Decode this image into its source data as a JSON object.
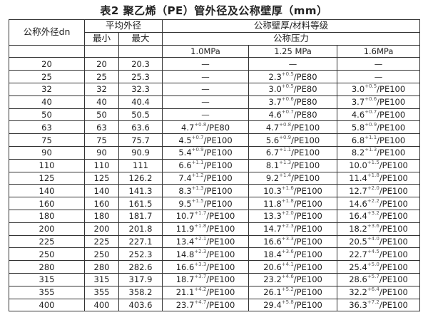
{
  "title": "表2 聚乙烯（PE）管外径及公称壁厚（mm）",
  "headers": {
    "dn": "公称外径dn",
    "mean_od": "平均外径",
    "min": "最小",
    "max": "最大",
    "wall": "公称壁厚/材料等级",
    "pressure": "公称压力",
    "p1": "1.0MPa",
    "p2": "1.25 MPa",
    "p3": "1.6MPa"
  },
  "rows": [
    {
      "dn": "20",
      "min": "20",
      "max": "20.3",
      "c": [
        {
          "v": "—"
        },
        {
          "v": "—"
        },
        {
          "v": "—"
        }
      ]
    },
    {
      "dn": "25",
      "min": "25",
      "max": "25.3",
      "c": [
        {
          "v": "—"
        },
        {
          "v": "2.3",
          "t": "+0.5",
          "m": "/PE80"
        },
        {
          "v": "—"
        }
      ]
    },
    {
      "dn": "32",
      "min": "32",
      "max": "32.3",
      "c": [
        {
          "v": "—"
        },
        {
          "v": "3.0",
          "t": "+0.5",
          "m": "/PE80"
        },
        {
          "v": "3.0",
          "t": "+0.5",
          "m": "/PE100"
        }
      ]
    },
    {
      "dn": "40",
      "min": "40",
      "max": "40.4",
      "c": [
        {
          "v": "—"
        },
        {
          "v": "3.7",
          "t": "+0.6",
          "m": "/PE80"
        },
        {
          "v": "3.7",
          "t": "+0.6",
          "m": "/PE100"
        }
      ]
    },
    {
      "dn": "50",
      "min": "50",
      "max": "50.5",
      "c": [
        {
          "v": "—"
        },
        {
          "v": "4.6",
          "t": "+0.7",
          "m": "/PE80"
        },
        {
          "v": "4.6",
          "t": "+0.7",
          "m": "/PE100"
        }
      ]
    },
    {
      "dn": "63",
      "min": "63",
      "max": "63.6",
      "c": [
        {
          "v": "4.7",
          "t": "+0.8",
          "m": "/PE80"
        },
        {
          "v": "4.7",
          "t": "+0.8",
          "m": "/PE100"
        },
        {
          "v": "5.8",
          "t": "+0.9",
          "m": "/PE100"
        }
      ]
    },
    {
      "dn": "75",
      "min": "75",
      "max": "75.7",
      "c": [
        {
          "v": "4.5",
          "t": "+0.7",
          "m": "/PE100"
        },
        {
          "v": "5.6",
          "t": "+0.9",
          "m": "/PE100"
        },
        {
          "v": "6.8",
          "t": "+1.1",
          "m": "/PE100"
        }
      ]
    },
    {
      "dn": "90",
      "min": "90",
      "max": "90.9",
      "c": [
        {
          "v": "5.4",
          "t": "+0.9",
          "m": "/PE100"
        },
        {
          "v": "6.7",
          "t": "+1.1",
          "m": "/PE100"
        },
        {
          "v": "8.2",
          "t": "+1.3",
          "m": "/PE100"
        }
      ]
    },
    {
      "dn": "110",
      "min": "110",
      "max": "111",
      "c": [
        {
          "v": "6.6",
          "t": "+1.1",
          "m": "/PE100"
        },
        {
          "v": "8.1",
          "t": "+1.3",
          "m": "/PE100"
        },
        {
          "v": "10.0",
          "t": "+1.5",
          "m": "/PE100"
        }
      ]
    },
    {
      "dn": "125",
      "min": "125",
      "max": "126.2",
      "c": [
        {
          "v": "7.4",
          "t": "+1.2",
          "m": "/PE100"
        },
        {
          "v": "9.2",
          "t": "+1.4",
          "m": "/PE100"
        },
        {
          "v": "11.4",
          "t": "+1.8",
          "m": "/PE100"
        }
      ]
    },
    {
      "dn": "140",
      "min": "140",
      "max": "141.3",
      "c": [
        {
          "v": "8.3",
          "t": "+1.3",
          "m": "/PE100"
        },
        {
          "v": "10.3",
          "t": "+1.6",
          "m": "/PE100"
        },
        {
          "v": "12.7",
          "t": "+2.0",
          "m": "/PE100"
        }
      ]
    },
    {
      "dn": "160",
      "min": "160",
      "max": "161.5",
      "c": [
        {
          "v": "9.5",
          "t": "+1.5",
          "m": "/PE100"
        },
        {
          "v": "11.8",
          "t": "+1.8",
          "m": "/PE100"
        },
        {
          "v": "14.6",
          "t": "+2.2",
          "m": "/PE100"
        }
      ]
    },
    {
      "dn": "180",
      "min": "180",
      "max": "181.7",
      "c": [
        {
          "v": "10.7",
          "t": "+1.7",
          "m": "/PE100"
        },
        {
          "v": "13.3",
          "t": "+2.0",
          "m": "/PE100"
        },
        {
          "v": "16.4",
          "t": "+3.2",
          "m": "/PE100"
        }
      ]
    },
    {
      "dn": "200",
      "min": "200",
      "max": "201.8",
      "c": [
        {
          "v": "11.9",
          "t": "+1.8",
          "m": "/PE100"
        },
        {
          "v": "14.7",
          "t": "+2.3",
          "m": "/PE100"
        },
        {
          "v": "18.2",
          "t": "+3.6",
          "m": "/PE100"
        }
      ]
    },
    {
      "dn": "225",
      "min": "225",
      "max": "227.1",
      "c": [
        {
          "v": "13.4",
          "t": "+2.1",
          "m": "/PE100"
        },
        {
          "v": "16.6",
          "t": "+3.3",
          "m": "/PE100"
        },
        {
          "v": "20.5",
          "t": "+4.0",
          "m": "/PE100"
        }
      ]
    },
    {
      "dn": "250",
      "min": "250",
      "max": "252.3",
      "c": [
        {
          "v": "14.8",
          "t": "+2.3",
          "m": "/PE100"
        },
        {
          "v": "18.4",
          "t": "+3.6",
          "m": "/PE100"
        },
        {
          "v": "22.7",
          "t": "+4.5",
          "m": "/PE100"
        }
      ]
    },
    {
      "dn": "280",
      "min": "280",
      "max": "282.6",
      "c": [
        {
          "v": "16.6",
          "t": "+3.3",
          "m": "/PE100"
        },
        {
          "v": "20.6",
          "t": "+4.1",
          "m": "/PE100"
        },
        {
          "v": "25.4",
          "t": "+5.0",
          "m": "/PE100"
        }
      ]
    },
    {
      "dn": "315",
      "min": "315",
      "max": "317.9",
      "c": [
        {
          "v": "18.7",
          "t": "+3.7",
          "m": "/PE100"
        },
        {
          "v": "23.2",
          "t": "+4.6",
          "m": "/PE100"
        },
        {
          "v": "28.6",
          "t": "+5.7",
          "m": "/PE100"
        }
      ]
    },
    {
      "dn": "355",
      "min": "355",
      "max": "358.2",
      "c": [
        {
          "v": "21.1",
          "t": "+4.2",
          "m": "/PE100"
        },
        {
          "v": "26.1",
          "t": "+5.2",
          "m": "/PE100"
        },
        {
          "v": "32.2",
          "t": "+6.4",
          "m": "/PE100"
        }
      ]
    },
    {
      "dn": "400",
      "min": "400",
      "max": "403.6",
      "c": [
        {
          "v": "23.7",
          "t": "+4.7",
          "m": "/PE100"
        },
        {
          "v": "29.4",
          "t": "+5.8",
          "m": "/PE100"
        },
        {
          "v": "36.3",
          "t": "+7.2",
          "m": "/PE100"
        }
      ]
    }
  ]
}
